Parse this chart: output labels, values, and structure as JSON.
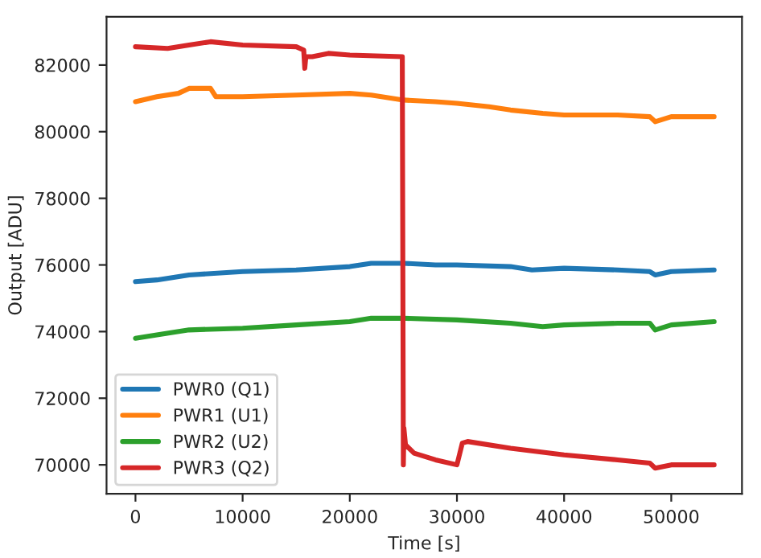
{
  "chart_data": {
    "type": "line",
    "xlabel": "Time [s]",
    "ylabel": "Output [ADU]",
    "xlim": [
      -2700,
      56600
    ],
    "ylim": [
      69130,
      83450
    ],
    "xticks": [
      0,
      10000,
      20000,
      30000,
      40000,
      50000
    ],
    "yticks": [
      70000,
      72000,
      74000,
      76000,
      78000,
      80000,
      82000
    ],
    "grid": false,
    "legend": "bottom left",
    "series": [
      {
        "name": "PWR0 (Q1)",
        "color": "#1f77b4",
        "x": [
          0,
          2000,
          5000,
          10000,
          15000,
          20000,
          22000,
          25000,
          28000,
          30000,
          35000,
          37000,
          40000,
          45000,
          48000,
          48500,
          50000,
          54000
        ],
        "values": [
          75500,
          75550,
          75700,
          75800,
          75850,
          75950,
          76050,
          76050,
          76000,
          76000,
          75950,
          75850,
          75900,
          75850,
          75800,
          75700,
          75800,
          75850
        ]
      },
      {
        "name": "PWR1 (U1)",
        "color": "#ff7f0e",
        "x": [
          0,
          2000,
          4000,
          5000,
          7000,
          7500,
          10000,
          15000,
          20000,
          22000,
          25000,
          28000,
          30000,
          33000,
          35000,
          38000,
          40000,
          45000,
          48000,
          48500,
          50000,
          54000
        ],
        "values": [
          80900,
          81050,
          81150,
          81300,
          81300,
          81050,
          81050,
          81100,
          81150,
          81100,
          80950,
          80900,
          80850,
          80750,
          80650,
          80550,
          80500,
          80500,
          80450,
          80300,
          80450,
          80450
        ]
      },
      {
        "name": "PWR2 (U2)",
        "color": "#2ca02c",
        "x": [
          0,
          2000,
          5000,
          10000,
          15000,
          20000,
          22000,
          25000,
          30000,
          35000,
          38000,
          40000,
          45000,
          48000,
          48500,
          50000,
          54000
        ],
        "values": [
          73800,
          73900,
          74050,
          74100,
          74200,
          74300,
          74400,
          74400,
          74350,
          74250,
          74150,
          74200,
          74250,
          74250,
          74050,
          74200,
          74300
        ]
      },
      {
        "name": "PWR3 (Q2)",
        "color": "#d62728",
        "x": [
          0,
          3000,
          5000,
          7000,
          10000,
          15000,
          15700,
          15800,
          15900,
          16500,
          18000,
          20000,
          24900,
          25000,
          25050,
          25200,
          26000,
          28000,
          30000,
          30500,
          31000,
          35000,
          40000,
          45000,
          48000,
          48500,
          50000,
          54000
        ],
        "values": [
          82550,
          82500,
          82600,
          82700,
          82600,
          82550,
          82450,
          81900,
          82250,
          82250,
          82350,
          82300,
          82250,
          70000,
          71100,
          70600,
          70350,
          70150,
          70000,
          70650,
          70700,
          70500,
          70300,
          70150,
          70050,
          69900,
          70000,
          70000
        ]
      }
    ]
  }
}
